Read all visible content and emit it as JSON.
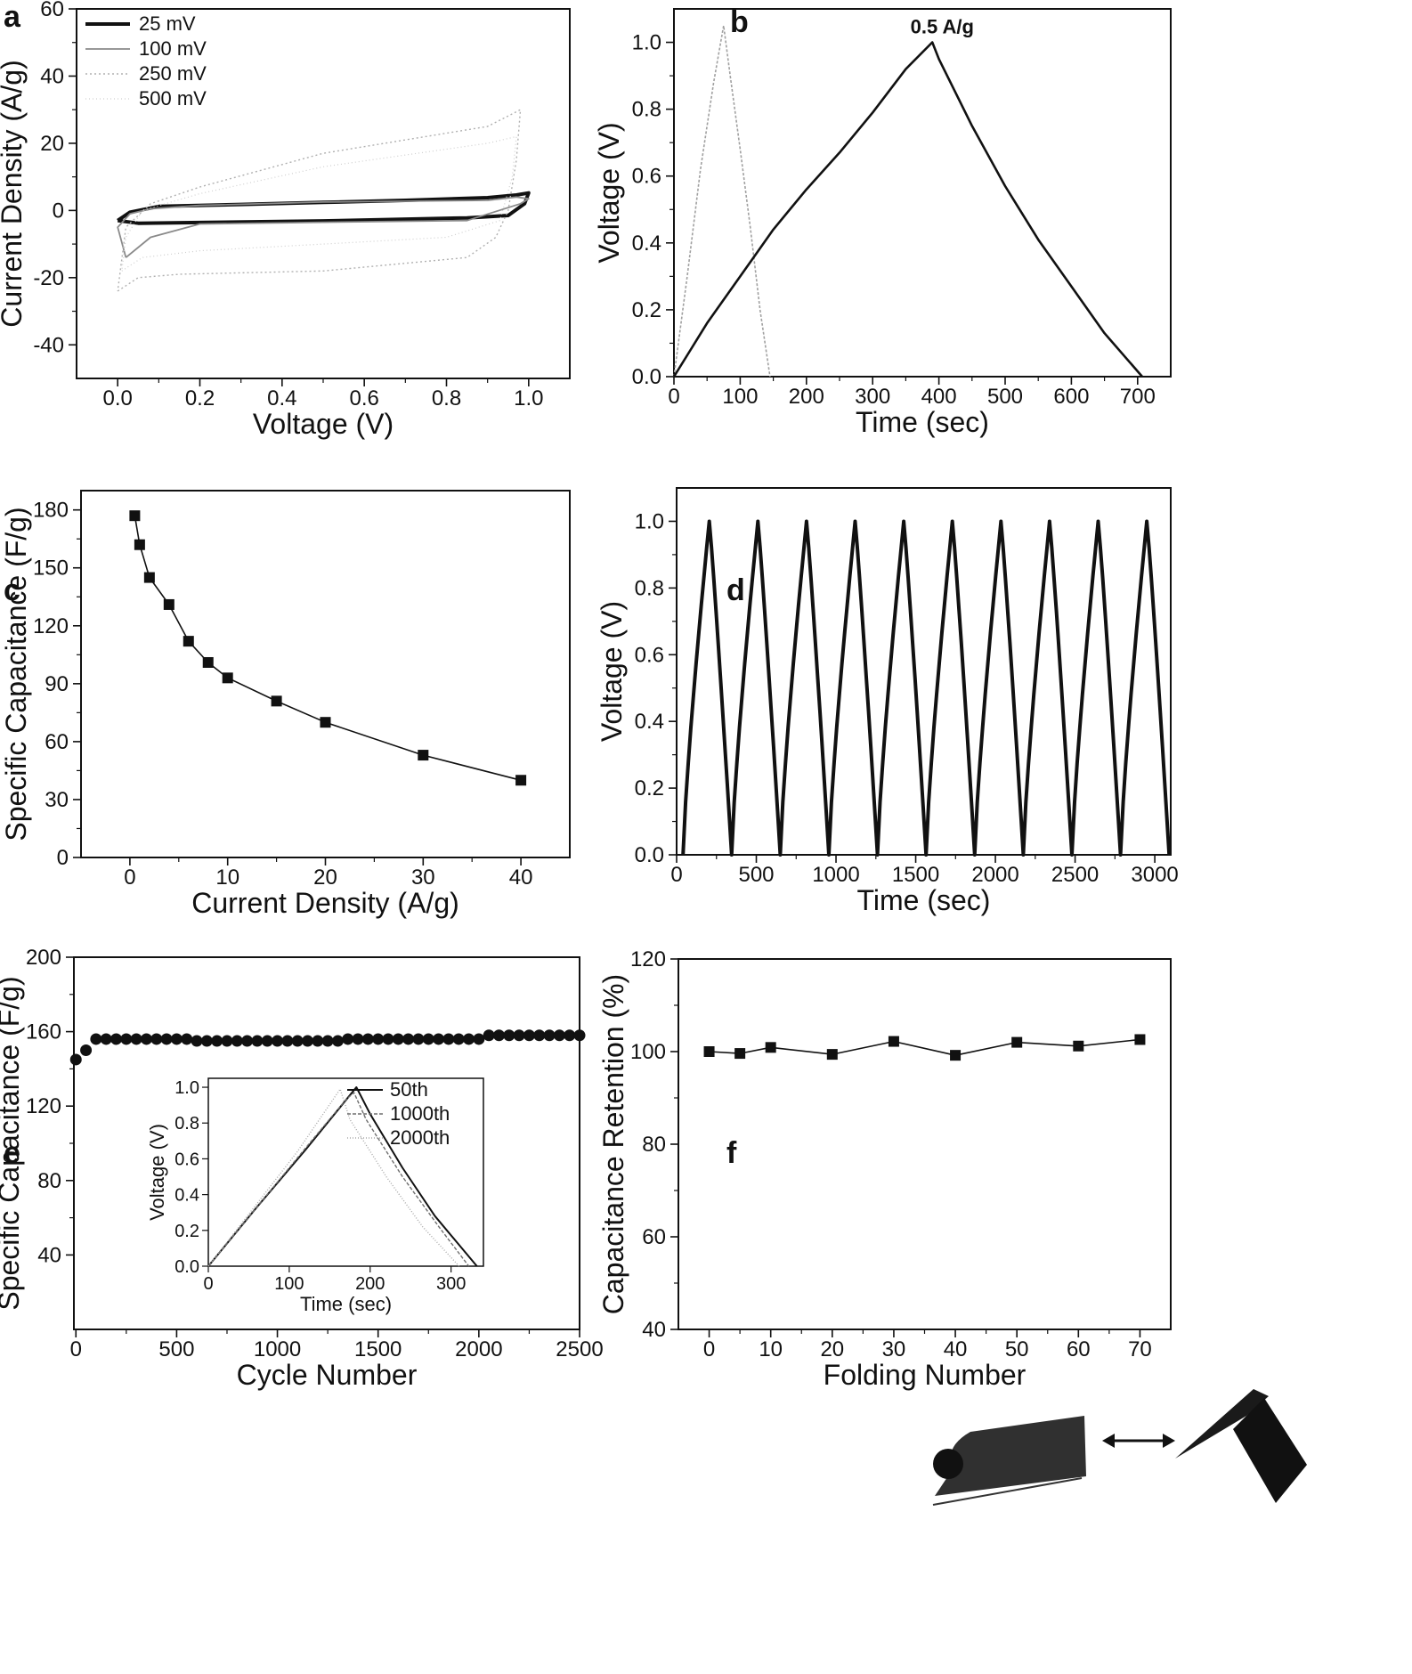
{
  "chart_data": [
    {
      "panel": "a",
      "type": "line",
      "xlabel": "Voltage (V)",
      "ylabel": "Current Density (A/g)",
      "xlim": [
        -0.1,
        1.1
      ],
      "ylim": [
        -50,
        60
      ],
      "xticks": [
        0.0,
        0.2,
        0.4,
        0.6,
        0.8,
        1.0
      ],
      "xtick_labels": [
        "0.0",
        "0.2",
        "0.4",
        "0.6",
        "0.8",
        "1.0"
      ],
      "yticks": [
        -40,
        -20,
        0,
        20,
        40,
        60
      ],
      "ytick_labels": [
        "-40",
        "-20",
        "0",
        "20",
        "40",
        "60"
      ],
      "legend": "top-left",
      "series": [
        {
          "name": "25 mV",
          "color": "#111111",
          "points": [
            [
              0.0,
              -3
            ],
            [
              0.03,
              -0.5
            ],
            [
              0.1,
              1.2
            ],
            [
              0.3,
              1.8
            ],
            [
              0.5,
              2.4
            ],
            [
              0.7,
              3.0
            ],
            [
              0.9,
              3.8
            ],
            [
              0.97,
              4.6
            ],
            [
              1.0,
              5.2
            ],
            [
              0.99,
              2.0
            ],
            [
              0.95,
              -1.5
            ],
            [
              0.85,
              -2.2
            ],
            [
              0.5,
              -3.1
            ],
            [
              0.2,
              -3.6
            ],
            [
              0.05,
              -3.8
            ],
            [
              0.0,
              -3
            ]
          ]
        },
        {
          "name": "100 mV",
          "color": "#8a8a8a",
          "points": [
            [
              0.02,
              -14
            ],
            [
              0.08,
              -8
            ],
            [
              0.2,
              -4
            ],
            [
              0.5,
              -3.5
            ],
            [
              0.85,
              -3
            ],
            [
              0.98,
              2
            ],
            [
              1.0,
              3.5
            ],
            [
              0.97,
              4
            ],
            [
              0.9,
              3
            ],
            [
              0.5,
              2.5
            ],
            [
              0.2,
              1.5
            ],
            [
              0.08,
              0.5
            ],
            [
              0.03,
              -1
            ],
            [
              0.0,
              -5
            ],
            [
              0.02,
              -14
            ]
          ]
        },
        {
          "name": "250 mV",
          "color": "#b0b0b0",
          "points": [
            [
              0.0,
              -24
            ],
            [
              0.05,
              -20
            ],
            [
              0.15,
              -19
            ],
            [
              0.5,
              -18
            ],
            [
              0.85,
              -14
            ],
            [
              0.92,
              -8
            ],
            [
              0.95,
              0
            ],
            [
              0.97,
              15
            ],
            [
              0.98,
              30
            ],
            [
              0.9,
              25
            ],
            [
              0.5,
              17
            ],
            [
              0.2,
              7
            ],
            [
              0.08,
              2
            ],
            [
              0.02,
              -5
            ],
            [
              0.0,
              -24
            ]
          ]
        },
        {
          "name": "500 mV",
          "color": "#cfcfcf",
          "points": [
            [
              0.01,
              -18
            ],
            [
              0.06,
              -14
            ],
            [
              0.2,
              -12
            ],
            [
              0.5,
              -10
            ],
            [
              0.8,
              -8
            ],
            [
              0.93,
              -3
            ],
            [
              0.96,
              10
            ],
            [
              0.97,
              22
            ],
            [
              0.9,
              20
            ],
            [
              0.5,
              13
            ],
            [
              0.2,
              5
            ],
            [
              0.06,
              0
            ],
            [
              0.02,
              -8
            ],
            [
              0.01,
              -18
            ]
          ]
        }
      ]
    },
    {
      "panel": "b",
      "type": "line",
      "xlabel": "Time (sec)",
      "ylabel": "Voltage (V)",
      "xlim": [
        0,
        750
      ],
      "ylim": [
        0,
        1.1
      ],
      "xticks": [
        0,
        100,
        200,
        300,
        400,
        500,
        600,
        700
      ],
      "xtick_labels": [
        "0",
        "100",
        "200",
        "300",
        "400",
        "500",
        "600",
        "700"
      ],
      "yticks": [
        0.0,
        0.2,
        0.4,
        0.6,
        0.8,
        1.0
      ],
      "ytick_labels": [
        "0.0",
        "0.2",
        "0.4",
        "0.6",
        "0.8",
        "1.0"
      ],
      "annotation": "0.5 A/g",
      "series": [
        {
          "color": "#111111",
          "points": [
            [
              0,
              0
            ],
            [
              25,
              0.08
            ],
            [
              50,
              0.16
            ],
            [
              75,
              0.23
            ],
            [
              100,
              0.3
            ],
            [
              125,
              0.37
            ],
            [
              150,
              0.44
            ],
            [
              200,
              0.56
            ],
            [
              250,
              0.67
            ],
            [
              300,
              0.79
            ],
            [
              350,
              0.92
            ],
            [
              390,
              1.0
            ],
            [
              400,
              0.95
            ],
            [
              450,
              0.75
            ],
            [
              500,
              0.57
            ],
            [
              550,
              0.41
            ],
            [
              600,
              0.27
            ],
            [
              650,
              0.13
            ],
            [
              707,
              0.0
            ]
          ]
        },
        {
          "color": "#a0a0a0",
          "points": [
            [
              0,
              0
            ],
            [
              20,
              0.3
            ],
            [
              40,
              0.62
            ],
            [
              60,
              0.88
            ],
            [
              75,
              1.05
            ],
            [
              85,
              0.9
            ],
            [
              100,
              0.68
            ],
            [
              115,
              0.45
            ],
            [
              130,
              0.2
            ],
            [
              145,
              0.0
            ]
          ]
        }
      ]
    },
    {
      "panel": "c",
      "type": "line",
      "markers": "square",
      "xlabel": "Current Density (A/g)",
      "ylabel": "Specific Capacitance (F/g)",
      "xlim": [
        -5,
        45
      ],
      "ylim": [
        0,
        190
      ],
      "xticks": [
        0,
        10,
        20,
        30,
        40
      ],
      "xtick_labels": [
        "0",
        "10",
        "20",
        "30",
        "40"
      ],
      "yticks": [
        0,
        30,
        60,
        90,
        120,
        150,
        180
      ],
      "ytick_labels": [
        "0",
        "30",
        "60",
        "90",
        "120",
        "150",
        "180"
      ],
      "x": [
        0.5,
        1,
        2,
        4,
        6,
        8,
        10,
        15,
        20,
        30,
        40
      ],
      "y": [
        177,
        162,
        145,
        131,
        112,
        101,
        93,
        81,
        70,
        53,
        40
      ]
    },
    {
      "panel": "d",
      "type": "line",
      "xlabel": "Time (sec)",
      "ylabel": "Voltage (V)",
      "xlim": [
        0,
        3100
      ],
      "ylim": [
        0,
        1.1
      ],
      "xticks": [
        0,
        500,
        1000,
        1500,
        2000,
        2500,
        3000
      ],
      "xtick_labels": [
        "0",
        "500",
        "1000",
        "1500",
        "2000",
        "2500",
        "3000"
      ],
      "yticks": [
        0.0,
        0.2,
        0.4,
        0.6,
        0.8,
        1.0
      ],
      "ytick_labels": [
        "0.0",
        "0.2",
        "0.4",
        "0.6",
        "0.8",
        "1.0"
      ],
      "cycle_start": [
        40,
        345,
        650,
        955,
        1260,
        1565,
        1870,
        2175,
        2480,
        2785
      ],
      "cycle_charge_time": 165,
      "cycle_discharge_time": 140,
      "series": [
        {
          "color": "#111111"
        }
      ]
    },
    {
      "panel": "e",
      "type": "scatter",
      "xlabel": "Cycle Number",
      "ylabel": "Specific Capacitance (F/g)",
      "xlim": [
        -10,
        2500
      ],
      "ylim": [
        0,
        200
      ],
      "xticks": [
        0,
        500,
        1000,
        1500,
        2000,
        2500
      ],
      "xtick_labels": [
        "0",
        "500",
        "1000",
        "1500",
        "2000",
        "2500"
      ],
      "yticks": [
        40,
        80,
        120,
        160,
        200
      ],
      "ytick_labels": [
        "40",
        "80",
        "120",
        "160",
        "200"
      ],
      "x": [
        0,
        50,
        100,
        150,
        200,
        250,
        300,
        350,
        400,
        450,
        500,
        550,
        600,
        650,
        700,
        750,
        800,
        850,
        900,
        950,
        1000,
        1050,
        1100,
        1150,
        1200,
        1250,
        1300,
        1350,
        1400,
        1450,
        1500,
        1550,
        1600,
        1650,
        1700,
        1750,
        1800,
        1850,
        1900,
        1950,
        2000,
        2050,
        2100,
        2150,
        2200,
        2250,
        2300,
        2350,
        2400,
        2450,
        2500
      ],
      "y": [
        145,
        150,
        156,
        156,
        156,
        156,
        156,
        156,
        156,
        156,
        156,
        156,
        155,
        155,
        155,
        155,
        155,
        155,
        155,
        155,
        155,
        155,
        155,
        155,
        155,
        155,
        155,
        156,
        156,
        156,
        156,
        156,
        156,
        156,
        156,
        156,
        156,
        156,
        156,
        156,
        156,
        158,
        158,
        158,
        158,
        158,
        158,
        158,
        158,
        158,
        158
      ],
      "inset": {
        "type": "line",
        "xlabel": "Time (sec)",
        "ylabel": "Voltage (V)",
        "xlim": [
          0,
          340
        ],
        "ylim": [
          0,
          1.05
        ],
        "xticks": [
          0,
          100,
          200,
          300
        ],
        "xtick_labels": [
          "0",
          "100",
          "200",
          "300"
        ],
        "yticks": [
          0.0,
          0.2,
          0.4,
          0.6,
          0.8,
          1.0
        ],
        "ytick_labels": [
          "0.0",
          "0.2",
          "0.4",
          "0.6",
          "0.8",
          "1.0"
        ],
        "legend": "top-right",
        "series": [
          {
            "name": "50th",
            "color": "#111111",
            "points": [
              [
                0,
                0
              ],
              [
                60,
                0.33
              ],
              [
                120,
                0.65
              ],
              [
                183,
                1.0
              ],
              [
                200,
                0.85
              ],
              [
                240,
                0.55
              ],
              [
                280,
                0.28
              ],
              [
                332,
                0.0
              ]
            ]
          },
          {
            "name": "1000th",
            "color": "#6e6e6e",
            "points": [
              [
                0,
                0
              ],
              [
                60,
                0.33
              ],
              [
                120,
                0.66
              ],
              [
                170,
                0.93
              ],
              [
                180,
                0.97
              ],
              [
                195,
                0.82
              ],
              [
                240,
                0.5
              ],
              [
                285,
                0.22
              ],
              [
                322,
                0.0
              ]
            ]
          },
          {
            "name": "2000th",
            "color": "#a8a8a8",
            "points": [
              [
                0,
                0
              ],
              [
                55,
                0.32
              ],
              [
                110,
                0.64
              ],
              [
                163,
                0.99
              ],
              [
                175,
                0.82
              ],
              [
                220,
                0.5
              ],
              [
                265,
                0.22
              ],
              [
                310,
                0.0
              ]
            ]
          }
        ]
      }
    },
    {
      "panel": "f",
      "type": "line",
      "markers": "square",
      "xlabel": "Folding Number",
      "ylabel": "Capacitance Retention (%)",
      "xlim": [
        -5,
        75
      ],
      "ylim": [
        40,
        120
      ],
      "xticks": [
        0,
        10,
        20,
        30,
        40,
        50,
        60,
        70
      ],
      "xtick_labels": [
        "0",
        "10",
        "20",
        "30",
        "40",
        "50",
        "60",
        "70"
      ],
      "yticks": [
        40,
        60,
        80,
        100,
        120
      ],
      "ytick_labels": [
        "40",
        "60",
        "80",
        "100",
        "120"
      ],
      "x": [
        0,
        5,
        10,
        20,
        30,
        40,
        50,
        60,
        70
      ],
      "y": [
        100,
        99.6,
        100.9,
        99.4,
        102.2,
        99.2,
        102.0,
        101.2,
        102.6
      ]
    }
  ],
  "legend_a": [
    "25 mV",
    "100 mV",
    "250 mV",
    "500 mV"
  ],
  "legend_e_inset": [
    "50th",
    "1000th",
    "2000th"
  ],
  "panel_labels": [
    "a",
    "b",
    "c",
    "d",
    "e",
    "f"
  ],
  "photo_f": {
    "description_icon": "folded-film-photo-icon",
    "arrow": "double-arrow-icon"
  },
  "colors": {
    "ink": "#111111",
    "background": "#ffffff"
  }
}
